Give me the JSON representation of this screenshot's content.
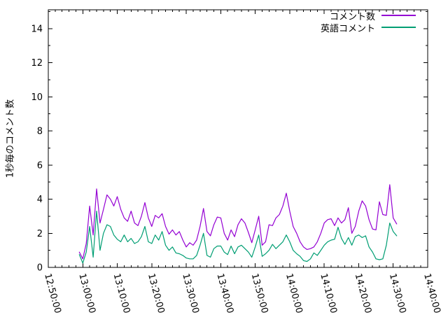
{
  "chart_data": {
    "type": "line",
    "title": "",
    "xlabel": "",
    "ylabel": "1秒毎のコメント数",
    "background_color": "#ffffff",
    "axis_color": "#000000",
    "grid": false,
    "legend_position": "top-right-inside",
    "ylim": [
      0,
      15.1
    ],
    "y_tick_values": [
      0,
      2,
      4,
      6,
      8,
      10,
      12,
      14
    ],
    "y_minor_tick_values": [
      1,
      3,
      5,
      7,
      9,
      11,
      13,
      15
    ],
    "x_tick_labels": [
      "12:50:00",
      "13:00:00",
      "13:10:00",
      "13:20:00",
      "13:30:00",
      "13:40:00",
      "13:50:00",
      "14:00:00",
      "14:10:00",
      "14:20:00",
      "14:30:00",
      "14:40:00"
    ],
    "x_range_minutes": 110,
    "x_tick_interval_minutes": 10,
    "x_minor_tick_interval_minutes": 2,
    "x": [
      "12:59:00",
      "13:00:00",
      "13:01:00",
      "13:02:00",
      "13:03:00",
      "13:04:00",
      "13:05:00",
      "13:06:00",
      "13:07:00",
      "13:08:00",
      "13:09:00",
      "13:10:00",
      "13:11:00",
      "13:12:00",
      "13:13:00",
      "13:14:00",
      "13:15:00",
      "13:16:00",
      "13:17:00",
      "13:18:00",
      "13:19:00",
      "13:20:00",
      "13:21:00",
      "13:22:00",
      "13:23:00",
      "13:24:00",
      "13:25:00",
      "13:26:00",
      "13:27:00",
      "13:28:00",
      "13:29:00",
      "13:30:00",
      "13:31:00",
      "13:32:00",
      "13:33:00",
      "13:34:00",
      "13:35:00",
      "13:36:00",
      "13:37:00",
      "13:38:00",
      "13:39:00",
      "13:40:00",
      "13:41:00",
      "13:42:00",
      "13:43:00",
      "13:44:00",
      "13:45:00",
      "13:46:00",
      "13:47:00",
      "13:48:00",
      "13:49:00",
      "13:50:00",
      "13:51:00",
      "13:52:00",
      "13:53:00",
      "13:54:00",
      "13:55:00",
      "13:56:00",
      "13:57:00",
      "13:58:00",
      "13:59:00",
      "14:00:00",
      "14:01:00",
      "14:02:00",
      "14:03:00",
      "14:04:00",
      "14:05:00",
      "14:06:00",
      "14:07:00",
      "14:08:00",
      "14:09:00",
      "14:10:00",
      "14:11:00",
      "14:12:00",
      "14:13:00",
      "14:14:00",
      "14:15:00",
      "14:16:00",
      "14:17:00",
      "14:18:00",
      "14:19:00",
      "14:20:00",
      "14:21:00",
      "14:22:00",
      "14:23:00",
      "14:24:00",
      "14:25:00",
      "14:26:00",
      "14:27:00",
      "14:28:00",
      "14:29:00",
      "14:30:00",
      "14:31:00"
    ],
    "series": [
      {
        "name": "コメント数",
        "color": "#9400d3",
        "values": [
          0.9,
          0.5,
          1.4,
          3.6,
          1.9,
          4.6,
          2.6,
          3.4,
          4.25,
          4.0,
          3.6,
          4.15,
          3.4,
          2.9,
          2.7,
          3.3,
          2.6,
          2.45,
          3.0,
          3.8,
          2.9,
          2.4,
          3.05,
          2.9,
          3.15,
          2.4,
          1.95,
          2.2,
          1.9,
          2.1,
          1.6,
          1.2,
          1.45,
          1.3,
          1.6,
          2.4,
          3.45,
          2.1,
          1.85,
          2.5,
          2.95,
          2.9,
          2.0,
          1.6,
          2.2,
          1.8,
          2.5,
          2.85,
          2.6,
          2.05,
          1.45,
          2.2,
          3.0,
          1.3,
          1.5,
          2.5,
          2.45,
          2.9,
          3.1,
          3.6,
          4.35,
          3.3,
          2.4,
          2.0,
          1.5,
          1.2,
          1.05,
          1.1,
          1.2,
          1.5,
          2.0,
          2.6,
          2.8,
          2.85,
          2.45,
          2.9,
          2.6,
          2.8,
          3.5,
          2.0,
          2.4,
          3.3,
          3.9,
          3.6,
          2.8,
          2.25,
          2.2,
          3.85,
          3.1,
          3.05,
          4.85,
          2.9,
          2.55
        ]
      },
      {
        "name": "英語コメント",
        "color": "#009e73",
        "values": [
          0.75,
          0.25,
          0.9,
          2.4,
          0.6,
          3.3,
          1.0,
          2.0,
          2.5,
          2.4,
          1.9,
          1.65,
          1.5,
          1.9,
          1.5,
          1.7,
          1.4,
          1.5,
          1.8,
          2.4,
          1.5,
          1.4,
          1.9,
          1.6,
          2.1,
          1.3,
          1.0,
          1.2,
          0.85,
          0.8,
          0.7,
          0.55,
          0.5,
          0.5,
          0.7,
          1.3,
          2.0,
          0.7,
          0.6,
          1.1,
          1.25,
          1.25,
          0.9,
          0.75,
          1.25,
          0.8,
          1.2,
          1.3,
          1.1,
          0.9,
          0.6,
          1.2,
          1.9,
          0.65,
          0.8,
          1.0,
          1.35,
          1.1,
          1.3,
          1.5,
          1.9,
          1.5,
          1.0,
          0.8,
          0.65,
          0.4,
          0.35,
          0.5,
          0.85,
          0.7,
          1.0,
          1.3,
          1.5,
          1.6,
          1.65,
          2.35,
          1.7,
          1.35,
          1.75,
          1.3,
          1.8,
          1.9,
          1.75,
          1.85,
          1.2,
          0.9,
          0.5,
          0.45,
          0.5,
          1.3,
          2.6,
          2.1,
          1.85
        ]
      }
    ]
  }
}
